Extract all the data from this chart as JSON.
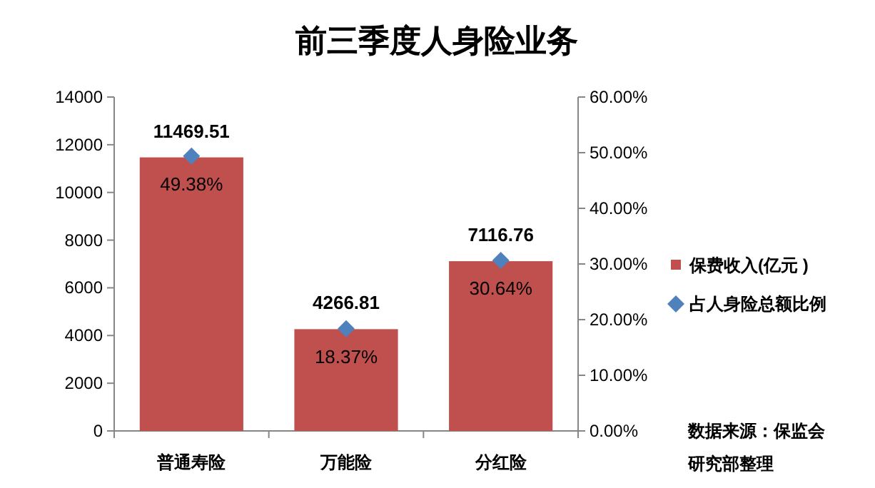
{
  "chart_data": {
    "type": "bar",
    "title": "前三季度人身险业务",
    "categories": [
      "普通寿险",
      "万能险",
      "分红险"
    ],
    "series": [
      {
        "name": "保费收入(亿元 )",
        "color": "#c0504d",
        "values": [
          11469.51,
          4266.81,
          7116.76
        ],
        "value_labels": [
          "11469.51",
          "4266.81",
          "7116.76"
        ]
      },
      {
        "name": "占人身险总额比例",
        "type": "scatter",
        "axis": "y2",
        "marker": "diamond",
        "color": "#4f81bd",
        "values": [
          49.38,
          18.37,
          30.64
        ],
        "value_labels": [
          "49.38%",
          "18.37%",
          "30.64%"
        ]
      }
    ],
    "ylim": [
      0,
      14000
    ],
    "yticks": [
      0,
      2000,
      4000,
      6000,
      8000,
      10000,
      12000,
      14000
    ],
    "y2lim": [
      0,
      60
    ],
    "y2ticks": [
      {
        "value": 0,
        "label": "0.00%"
      },
      {
        "value": 10,
        "label": "10.00%"
      },
      {
        "value": 20,
        "label": "20.00%"
      },
      {
        "value": 30,
        "label": "30.00%"
      },
      {
        "value": 40,
        "label": "40.00%"
      },
      {
        "value": 50,
        "label": "50.00%"
      },
      {
        "value": 60,
        "label": "60.00%"
      }
    ],
    "grid": false,
    "legend": "right",
    "annotations": [
      "数据来源：保监会",
      "研究部整理"
    ]
  }
}
